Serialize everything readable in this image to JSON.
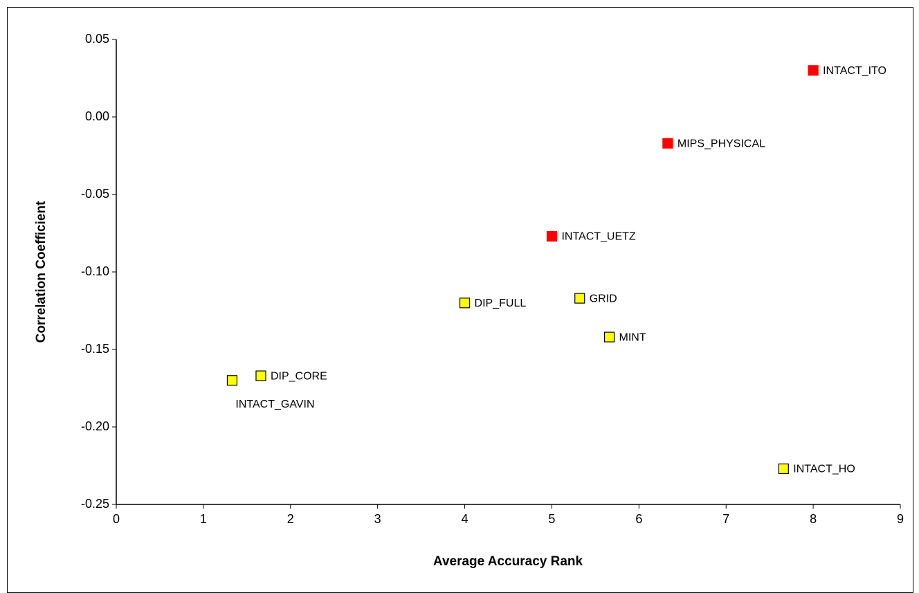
{
  "chart_data": {
    "type": "scatter",
    "xlabel": "Average Accuracy Rank",
    "ylabel": "Correlation Coefficient",
    "xlim": [
      0,
      9
    ],
    "xticks": [
      0,
      1,
      2,
      3,
      4,
      5,
      6,
      7,
      8,
      9
    ],
    "ylim": [
      -0.25,
      0.05
    ],
    "yticks": [
      -0.25,
      {
        "value": -0.2,
        "label": "-0.20"
      },
      -0.15,
      {
        "value": -0.1,
        "label": "-0.10"
      },
      -0.05,
      {
        "value": 0,
        "label": "0.00"
      },
      0.05
    ],
    "grid": false,
    "series": [
      {
        "color": "#ff0000",
        "x": [
          8,
          6.33,
          5
        ],
        "values": [
          0.03,
          -0.017,
          -0.077
        ],
        "labels": [
          "INTACT_ITO",
          "MIPS_PHYSICAL",
          "INTACT_UETZ"
        ]
      },
      {
        "color": "#ffff00",
        "x": [
          1.33,
          1.66,
          4,
          5.32,
          5.66,
          7.66
        ],
        "values": [
          -0.17,
          -0.167,
          -0.12,
          -0.117,
          -0.142,
          -0.227
        ],
        "labels": [
          "INTACT_GAVIN",
          "DIP_CORE",
          "DIP_FULL",
          "GRID",
          "MINT",
          "INTACT_HO"
        ]
      }
    ]
  }
}
